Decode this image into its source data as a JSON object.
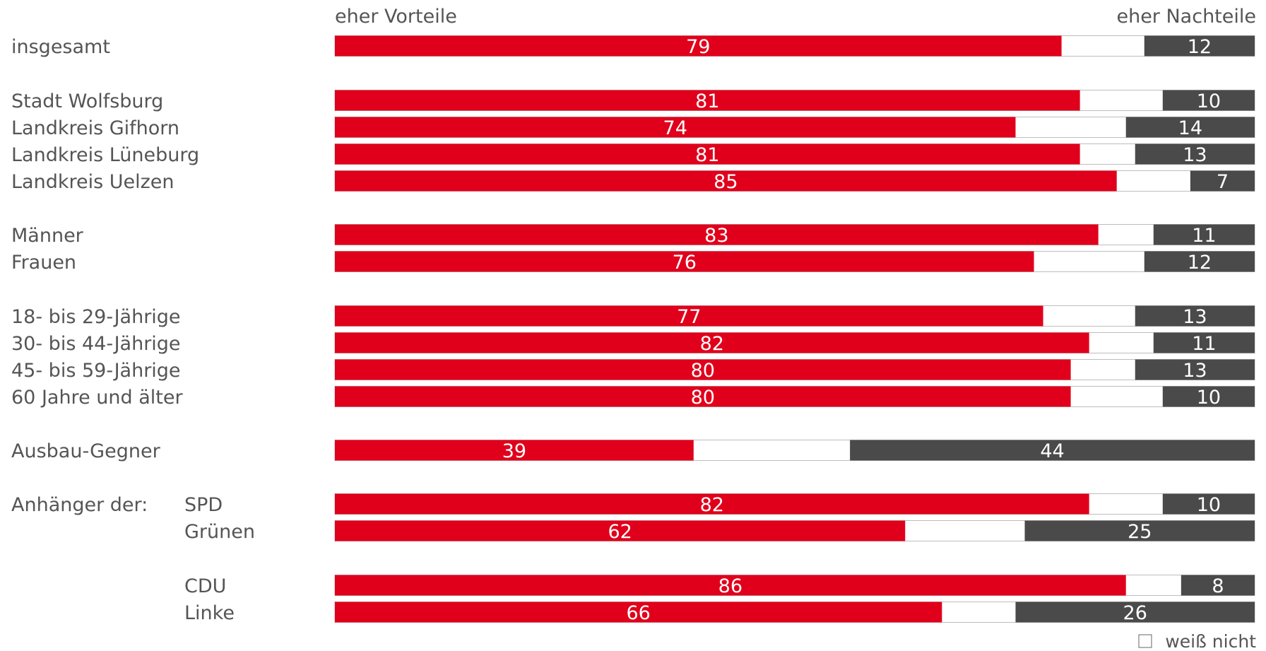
{
  "chart_data": {
    "type": "bar",
    "stacked": true,
    "orientation": "horizontal",
    "column_headers": {
      "left": "eher Vorteile",
      "right": "eher Nachteile"
    },
    "group_label": "Anhänger der:",
    "colors": {
      "vorteile": "#e0001b",
      "weiss_nicht": "#ffffff",
      "nachteile": "#4a4a4a",
      "text": "#555555"
    },
    "legend": {
      "label": "weiß nicht",
      "position": "bottom-right"
    },
    "xlim": [
      0,
      100
    ],
    "rows": [
      {
        "label": "insgesamt",
        "vorteile": 79,
        "nachteile": 12
      },
      {
        "label": "Stadt Wolfsburg",
        "vorteile": 81,
        "nachteile": 10
      },
      {
        "label": "Landkreis Gifhorn",
        "vorteile": 74,
        "nachteile": 14
      },
      {
        "label": "Landkreis Lüneburg",
        "vorteile": 81,
        "nachteile": 13
      },
      {
        "label": "Landkreis Uelzen",
        "vorteile": 85,
        "nachteile": 7
      },
      {
        "label": "Männer",
        "vorteile": 83,
        "nachteile": 11
      },
      {
        "label": "Frauen",
        "vorteile": 76,
        "nachteile": 12
      },
      {
        "label": "18- bis 29-Jährige",
        "vorteile": 77,
        "nachteile": 13
      },
      {
        "label": "30- bis 44-Jährige",
        "vorteile": 82,
        "nachteile": 11
      },
      {
        "label": "45- bis 59-Jährige",
        "vorteile": 80,
        "nachteile": 13
      },
      {
        "label": "60 Jahre und älter",
        "vorteile": 80,
        "nachteile": 10
      },
      {
        "label": "Ausbau-Gegner",
        "vorteile": 39,
        "nachteile": 44
      },
      {
        "label": "SPD",
        "vorteile": 82,
        "nachteile": 10
      },
      {
        "label": "Grünen",
        "vorteile": 62,
        "nachteile": 25
      },
      {
        "label": "CDU",
        "vorteile": 86,
        "nachteile": 8
      },
      {
        "label": "Linke",
        "vorteile": 66,
        "nachteile": 26
      }
    ]
  }
}
